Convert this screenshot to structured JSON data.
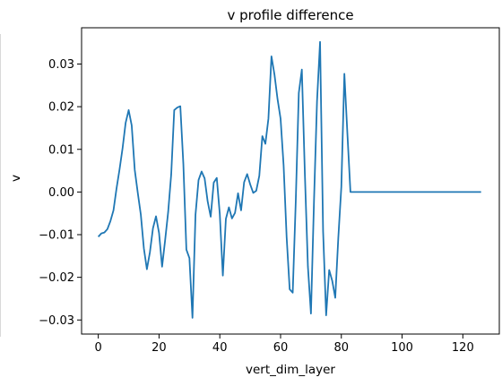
{
  "chart_data": {
    "type": "line",
    "title": "v profile difference",
    "xlabel": "vert_dim_layer",
    "ylabel": "v",
    "xlim": [
      -5.5,
      132
    ],
    "ylim": [
      -0.0333,
      0.0385
    ],
    "xticks": [
      0,
      20,
      40,
      60,
      80,
      100,
      120
    ],
    "yticks": [
      -0.03,
      -0.02,
      -0.01,
      0.0,
      0.01,
      0.02,
      0.03
    ],
    "xtick_labels": [
      "0",
      "20",
      "40",
      "60",
      "80",
      "100",
      "120"
    ],
    "ytick_labels": [
      "−0.03",
      "−0.02",
      "−0.01",
      "0.00",
      "0.01",
      "0.02",
      "0.03"
    ],
    "grid": false,
    "color": "#1f77b4",
    "series": [
      {
        "x": [
          0,
          1,
          2,
          3,
          4,
          5,
          6,
          7,
          8,
          9,
          10,
          11,
          12,
          13,
          14,
          15,
          16,
          17,
          18,
          19,
          20,
          21,
          22,
          23,
          24,
          25,
          26,
          27,
          28,
          29,
          30,
          31,
          32,
          33,
          34,
          35,
          36,
          37,
          38,
          39,
          40,
          41,
          42,
          43,
          44,
          45,
          46,
          47,
          48,
          49,
          50,
          51,
          52,
          53,
          54,
          55,
          56,
          57,
          58,
          59,
          60,
          61,
          62,
          63,
          64,
          65,
          66,
          67,
          68,
          69,
          70,
          71,
          72,
          73,
          74,
          75,
          76,
          77,
          78,
          79,
          80,
          81,
          82,
          83,
          126
        ],
        "y": [
          -0.0105,
          -0.0097,
          -0.0095,
          -0.0087,
          -0.0068,
          -0.0043,
          0.0008,
          0.0053,
          0.0103,
          0.0162,
          0.0192,
          0.0156,
          0.0052,
          -0.0002,
          -0.0053,
          -0.0132,
          -0.0181,
          -0.0141,
          -0.0085,
          -0.0057,
          -0.0096,
          -0.0175,
          -0.0113,
          -0.0047,
          0.0041,
          0.0192,
          0.0198,
          0.0201,
          0.0066,
          -0.0135,
          -0.0155,
          -0.0295,
          -0.0053,
          0.0028,
          0.0048,
          0.0032,
          -0.0022,
          -0.0058,
          0.0022,
          0.0033,
          -0.0052,
          -0.0196,
          -0.0063,
          -0.0036,
          -0.0062,
          -0.0049,
          -0.0003,
          -0.0043,
          0.0023,
          0.0042,
          0.0018,
          -0.0002,
          0.0003,
          0.0038,
          0.0131,
          0.0113,
          0.0172,
          0.0318,
          0.0275,
          0.0218,
          0.0172,
          0.0063,
          -0.0106,
          -0.0228,
          -0.0236,
          -0.0022,
          0.0232,
          0.0287,
          0.0042,
          -0.0175,
          -0.0285,
          -0.0022,
          0.0213,
          0.0352,
          -0.0092,
          -0.0289,
          -0.0183,
          -0.0208,
          -0.0248,
          -0.0108,
          0.0012,
          0.0277,
          0.0136,
          0.0,
          0.0
        ]
      }
    ]
  }
}
